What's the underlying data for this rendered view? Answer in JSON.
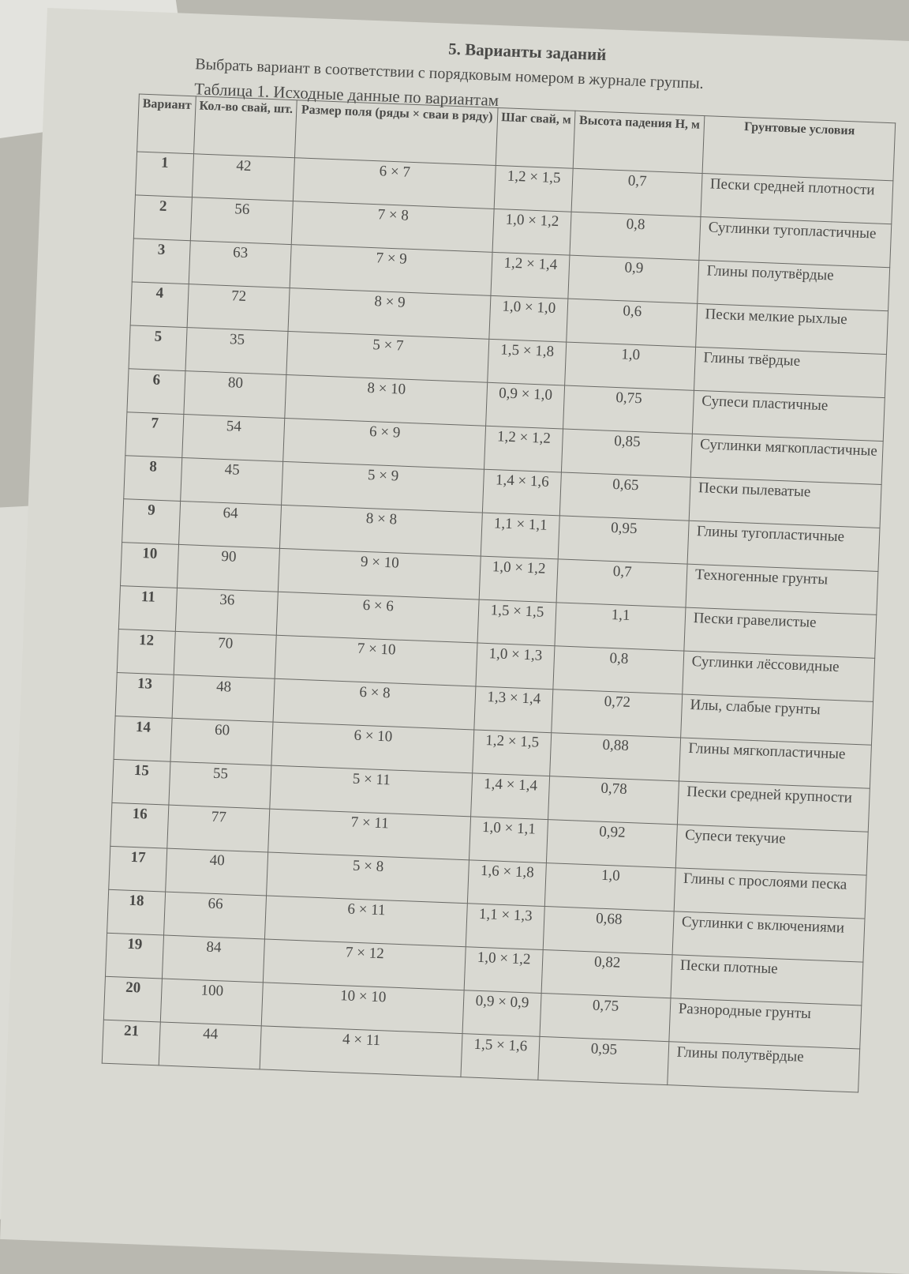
{
  "heading": "5. Варианты заданий",
  "intro": "Выбрать вариант в соответствии с порядковым номером в журнале группы.",
  "caption": "Таблица 1. Исходные данные по вариантам",
  "table": {
    "headers": [
      "Вариант",
      "Кол-во свай, шт.",
      "Размер поля (ряды × сваи в ряду)",
      "Шаг свай, м",
      "Высота падения H, м",
      "Грунтовые условия"
    ],
    "rows": [
      [
        "1",
        "42",
        "6 × 7",
        "1,2 × 1,5",
        "0,7",
        "Пески средней плотности"
      ],
      [
        "2",
        "56",
        "7 × 8",
        "1,0 × 1,2",
        "0,8",
        "Суглинки тугопластичные"
      ],
      [
        "3",
        "63",
        "7 × 9",
        "1,2 × 1,4",
        "0,9",
        "Глины полутвёрдые"
      ],
      [
        "4",
        "72",
        "8 × 9",
        "1,0 × 1,0",
        "0,6",
        "Пески мелкие рыхлые"
      ],
      [
        "5",
        "35",
        "5 × 7",
        "1,5 × 1,8",
        "1,0",
        "Глины твёрдые"
      ],
      [
        "6",
        "80",
        "8 × 10",
        "0,9 × 1,0",
        "0,75",
        "Супеси пластичные"
      ],
      [
        "7",
        "54",
        "6 × 9",
        "1,2 × 1,2",
        "0,85",
        "Суглинки мягкопластичные"
      ],
      [
        "8",
        "45",
        "5 × 9",
        "1,4 × 1,6",
        "0,65",
        "Пески пылеватые"
      ],
      [
        "9",
        "64",
        "8 × 8",
        "1,1 × 1,1",
        "0,95",
        "Глины тугопластичные"
      ],
      [
        "10",
        "90",
        "9 × 10",
        "1,0 × 1,2",
        "0,7",
        "Техногенные грунты"
      ],
      [
        "11",
        "36",
        "6 × 6",
        "1,5 × 1,5",
        "1,1",
        "Пески гравелистые"
      ],
      [
        "12",
        "70",
        "7 × 10",
        "1,0 × 1,3",
        "0,8",
        "Суглинки лёссовидные"
      ],
      [
        "13",
        "48",
        "6 × 8",
        "1,3 × 1,4",
        "0,72",
        "Илы, слабые грунты"
      ],
      [
        "14",
        "60",
        "6 × 10",
        "1,2 × 1,5",
        "0,88",
        "Глины мягкопластичные"
      ],
      [
        "15",
        "55",
        "5 × 11",
        "1,4 × 1,4",
        "0,78",
        "Пески средней крупности"
      ],
      [
        "16",
        "77",
        "7 × 11",
        "1,0 × 1,1",
        "0,92",
        "Супеси текучие"
      ],
      [
        "17",
        "40",
        "5 × 8",
        "1,6 × 1,8",
        "1,0",
        "Глины с прослоями песка"
      ],
      [
        "18",
        "66",
        "6 × 11",
        "1,1 × 1,3",
        "0,68",
        "Суглинки с включениями"
      ],
      [
        "19",
        "84",
        "7 × 12",
        "1,0 × 1,2",
        "0,82",
        "Пески плотные"
      ],
      [
        "20",
        "100",
        "10 × 10",
        "0,9 × 0,9",
        "0,75",
        "Разнородные грунты"
      ],
      [
        "21",
        "44",
        "4 × 11",
        "1,5 × 1,6",
        "0,95",
        "Глины полутвёрдые"
      ]
    ]
  }
}
